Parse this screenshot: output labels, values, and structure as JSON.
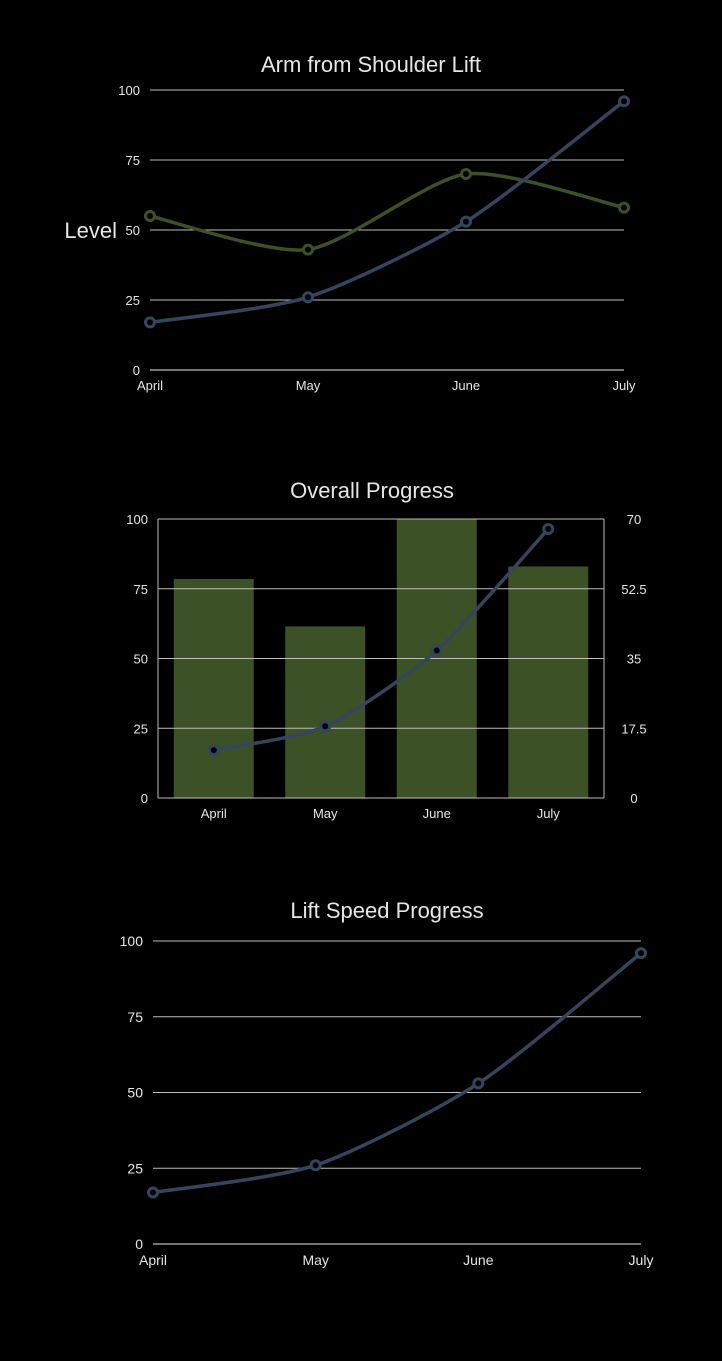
{
  "chart_data": [
    {
      "type": "line",
      "title": "Arm from Shoulder Lift",
      "ylabel": "Level",
      "categories": [
        "April",
        "May",
        "June",
        "July"
      ],
      "ylim": [
        0,
        100
      ],
      "yticks": [
        "0",
        "25",
        "50",
        "75",
        "100"
      ],
      "grid": true,
      "series": [
        {
          "values": [
            55,
            43,
            70,
            58
          ],
          "color": "#3d5127"
        },
        {
          "values": [
            17,
            26,
            53,
            96
          ],
          "color": "#34455c"
        }
      ]
    },
    {
      "type": "bar",
      "title": "Overall Progress",
      "categories": [
        "April",
        "May",
        "June",
        "July"
      ],
      "ylim": [
        0,
        100
      ],
      "yticks": [
        "0",
        "25",
        "50",
        "75",
        "100"
      ],
      "y2lim": [
        0,
        70
      ],
      "y2ticks": [
        "0",
        "17.5",
        "35",
        "52.5",
        "70"
      ],
      "grid": true,
      "bars": {
        "values": [
          78.5,
          61.5,
          100,
          83
        ],
        "color": "#3d5127",
        "axis": "left"
      },
      "line": {
        "values": [
          12,
          18,
          37,
          67.5
        ],
        "color": "#34455c",
        "axis": "right"
      }
    },
    {
      "type": "line",
      "title": "Lift Speed Progress",
      "categories": [
        "April",
        "May",
        "June",
        "July"
      ],
      "ylim": [
        0,
        100
      ],
      "yticks": [
        "0",
        "25",
        "50",
        "75",
        "100"
      ],
      "grid": true,
      "series": [
        {
          "values": [
            17,
            26,
            53,
            96
          ],
          "color": "#34455c"
        }
      ]
    }
  ]
}
